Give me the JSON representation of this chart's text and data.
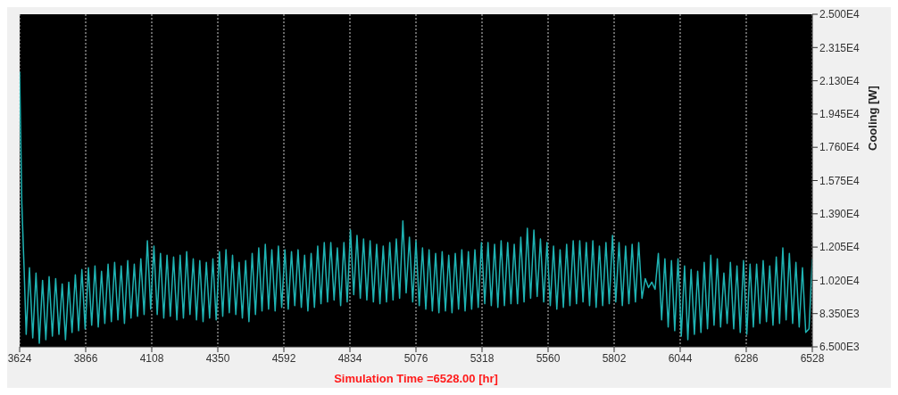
{
  "chart_data": {
    "type": "line",
    "xlabel": "Simulation Time =6528.00 [hr]",
    "ylabel": "Cooling [W]",
    "x": [
      3624,
      3632,
      3640,
      3648,
      3660,
      3672,
      3684,
      3696,
      3708,
      3720,
      3732,
      3744,
      3756,
      3768,
      3780,
      3792,
      3804,
      3816,
      3828,
      3840,
      3852,
      3864,
      3876,
      3888,
      3900,
      3912,
      3924,
      3936,
      3948,
      3960,
      3972,
      3984,
      3996,
      4008,
      4020,
      4032,
      4044,
      4056,
      4068,
      4080,
      4092,
      4104,
      4116,
      4128,
      4140,
      4152,
      4164,
      4176,
      4188,
      4200,
      4212,
      4224,
      4236,
      4248,
      4260,
      4272,
      4284,
      4296,
      4308,
      4320,
      4332,
      4344,
      4356,
      4368,
      4380,
      4392,
      4404,
      4416,
      4428,
      4440,
      4452,
      4464,
      4476,
      4488,
      4500,
      4512,
      4524,
      4536,
      4548,
      4560,
      4572,
      4584,
      4596,
      4608,
      4620,
      4632,
      4644,
      4656,
      4668,
      4680,
      4692,
      4704,
      4716,
      4728,
      4740,
      4752,
      4764,
      4776,
      4788,
      4800,
      4812,
      4824,
      4836,
      4848,
      4860,
      4872,
      4884,
      4896,
      4908,
      4920,
      4932,
      4944,
      4956,
      4968,
      4980,
      4992,
      5004,
      5016,
      5028,
      5040,
      5052,
      5064,
      5076,
      5088,
      5100,
      5112,
      5124,
      5136,
      5148,
      5160,
      5172,
      5184,
      5196,
      5208,
      5220,
      5232,
      5244,
      5256,
      5268,
      5280,
      5292,
      5304,
      5316,
      5328,
      5340,
      5352,
      5364,
      5376,
      5388,
      5400,
      5412,
      5424,
      5436,
      5448,
      5460,
      5472,
      5484,
      5496,
      5508,
      5520,
      5532,
      5544,
      5556,
      5568,
      5580,
      5592,
      5604,
      5616,
      5628,
      5640,
      5652,
      5664,
      5676,
      5688,
      5700,
      5712,
      5724,
      5736,
      5748,
      5760,
      5772,
      5784,
      5796,
      5808,
      5820,
      5832,
      5844,
      5856,
      5868,
      5880,
      5892,
      5904,
      5916,
      5928,
      5940,
      5952,
      5964,
      5976,
      5988,
      6000,
      6012,
      6024,
      6036,
      6048,
      6060,
      6072,
      6084,
      6096,
      6108,
      6120,
      6132,
      6144,
      6156,
      6168,
      6180,
      6192,
      6204,
      6216,
      6228,
      6240,
      6252,
      6264,
      6276,
      6288,
      6300,
      6312,
      6324,
      6336,
      6348,
      6360,
      6372,
      6384,
      6396,
      6408,
      6420,
      6432,
      6444,
      6456,
      6468,
      6480,
      6492,
      6504,
      6516,
      6528
    ],
    "series": [
      {
        "color": "#1fb3b3",
        "values": [
          21800,
          14500,
          11000,
          7200,
          10900,
          7000,
          10600,
          6700,
          10200,
          6900,
          10400,
          7100,
          10300,
          7200,
          10000,
          6900,
          10100,
          7300,
          10500,
          7400,
          10800,
          7500,
          10900,
          7700,
          11000,
          7600,
          10700,
          7800,
          11100,
          7900,
          11200,
          8000,
          11000,
          7800,
          11300,
          8100,
          11100,
          8200,
          11400,
          8300,
          12400,
          8600,
          12100,
          8300,
          11700,
          8100,
          11600,
          8200,
          11500,
          8000,
          11600,
          8100,
          11800,
          8300,
          11400,
          8000,
          11300,
          7900,
          11200,
          8100,
          11400,
          8000,
          11800,
          8200,
          11900,
          8400,
          11600,
          8300,
          11200,
          8100,
          11300,
          7900,
          11700,
          8300,
          12000,
          8500,
          12200,
          8600,
          11900,
          8500,
          12100,
          8700,
          11900,
          8600,
          11800,
          8800,
          11900,
          8700,
          11600,
          8500,
          11700,
          8700,
          12100,
          8900,
          12300,
          9000,
          12300,
          9100,
          12000,
          8800,
          12300,
          9000,
          13000,
          9400,
          12700,
          9200,
          12500,
          9100,
          12400,
          9000,
          12200,
          8900,
          12100,
          9000,
          12300,
          9100,
          12500,
          9200,
          13500,
          9500,
          12600,
          9000,
          12400,
          8800,
          12000,
          8600,
          11900,
          8500,
          11700,
          8400,
          11800,
          8500,
          11600,
          8400,
          11700,
          8600,
          11900,
          8500,
          11800,
          8600,
          11900,
          8700,
          12300,
          8900,
          12300,
          8800,
          12200,
          8700,
          12400,
          8800,
          12300,
          8900,
          12200,
          8900,
          12600,
          9000,
          13100,
          9200,
          13000,
          9300,
          12500,
          9000,
          12300,
          8800,
          12100,
          8600,
          11900,
          8700,
          12200,
          8800,
          12400,
          8900,
          12400,
          9000,
          12300,
          8800,
          12400,
          8700,
          12100,
          8800,
          12300,
          8900,
          12700,
          9000,
          12300,
          8800,
          12100,
          8900,
          12200,
          9000,
          12300,
          9200,
          10300,
          9800,
          10100,
          9700,
          11700,
          8000,
          11400,
          7600,
          11300,
          7400,
          11400,
          7100,
          11000,
          6900,
          10800,
          7200,
          10700,
          7300,
          11200,
          7500,
          11600,
          7700,
          11400,
          7600,
          10600,
          7800,
          11200,
          7500,
          11000,
          7300,
          11300,
          7200,
          11100,
          7600,
          11100,
          7800,
          11300,
          7900,
          11000,
          7700,
          11500,
          7800,
          12000,
          8000,
          11700,
          7800,
          11200,
          7600,
          10900,
          7300,
          7500,
          11400
        ]
      }
    ],
    "xlim": [
      3624,
      6528
    ],
    "xticks": [
      3624,
      3866,
      4108,
      4350,
      4592,
      4834,
      5076,
      5318,
      5560,
      5802,
      6044,
      6286,
      6528
    ],
    "ylim": [
      6500,
      25000
    ],
    "yticks": [
      {
        "value": 6500,
        "label": "6.500E3"
      },
      {
        "value": 8350,
        "label": "8.350E3"
      },
      {
        "value": 10200,
        "label": "1.020E4"
      },
      {
        "value": 12050,
        "label": "1.205E4"
      },
      {
        "value": 13900,
        "label": "1.390E4"
      },
      {
        "value": 15750,
        "label": "1.575E4"
      },
      {
        "value": 17600,
        "label": "1.760E4"
      },
      {
        "value": 19450,
        "label": "1.945E4"
      },
      {
        "value": 21300,
        "label": "2.130E4"
      },
      {
        "value": 23150,
        "label": "2.315E4"
      },
      {
        "value": 25000,
        "label": "2.500E4"
      }
    ],
    "grid": "x",
    "legend": false,
    "marker": "none",
    "line_style": "solid"
  }
}
